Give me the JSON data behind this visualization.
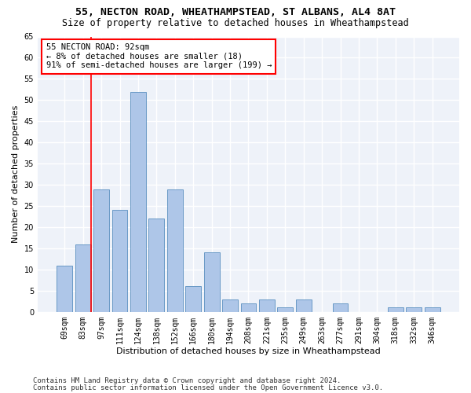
{
  "title1": "55, NECTON ROAD, WHEATHAMPSTEAD, ST ALBANS, AL4 8AT",
  "title2": "Size of property relative to detached houses in Wheathampstead",
  "xlabel": "Distribution of detached houses by size in Wheathampstead",
  "ylabel": "Number of detached properties",
  "categories": [
    "69sqm",
    "83sqm",
    "97sqm",
    "111sqm",
    "124sqm",
    "138sqm",
    "152sqm",
    "166sqm",
    "180sqm",
    "194sqm",
    "208sqm",
    "221sqm",
    "235sqm",
    "249sqm",
    "263sqm",
    "277sqm",
    "291sqm",
    "304sqm",
    "318sqm",
    "332sqm",
    "346sqm"
  ],
  "values": [
    11,
    16,
    29,
    24,
    52,
    22,
    29,
    6,
    14,
    3,
    2,
    3,
    1,
    3,
    0,
    2,
    0,
    0,
    1,
    1,
    1
  ],
  "bar_color": "#aec6e8",
  "bar_edge_color": "#5a8fc0",
  "annotation_line1": "55 NECTON ROAD: 92sqm",
  "annotation_line2": "← 8% of detached houses are smaller (18)",
  "annotation_line3": "91% of semi-detached houses are larger (199) →",
  "red_line_x": 1.43,
  "ylim": [
    0,
    65
  ],
  "yticks": [
    0,
    5,
    10,
    15,
    20,
    25,
    30,
    35,
    40,
    45,
    50,
    55,
    60,
    65
  ],
  "background_color": "#eef2f9",
  "grid_color": "#ffffff",
  "footer1": "Contains HM Land Registry data © Crown copyright and database right 2024.",
  "footer2": "Contains public sector information licensed under the Open Government Licence v3.0.",
  "title1_fontsize": 9.5,
  "title2_fontsize": 8.5,
  "xlabel_fontsize": 8,
  "ylabel_fontsize": 8,
  "tick_fontsize": 7,
  "annotation_fontsize": 7.5,
  "footer_fontsize": 6.5
}
